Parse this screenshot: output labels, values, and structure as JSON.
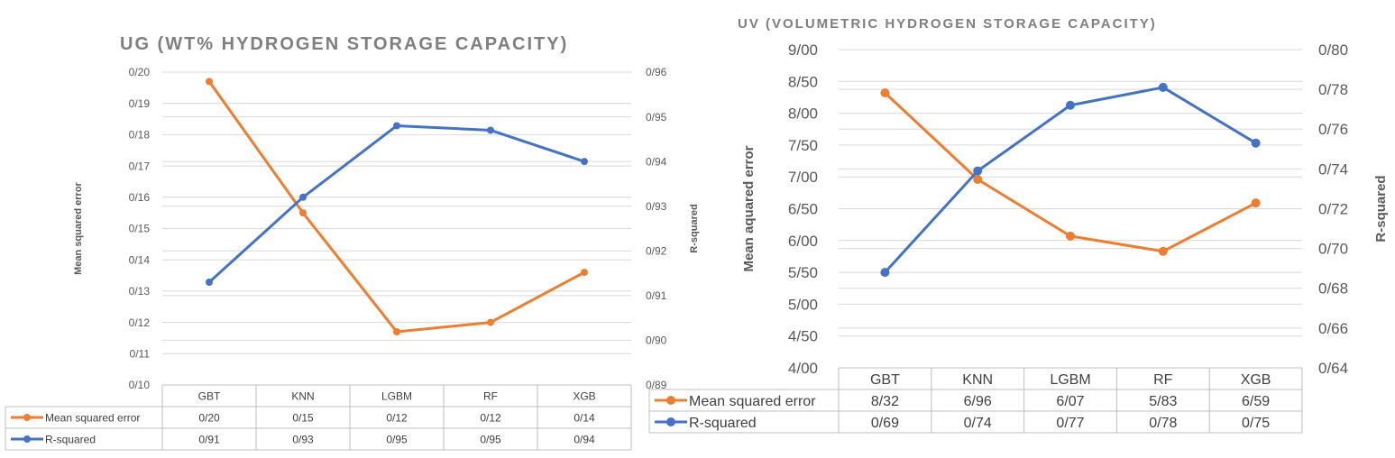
{
  "colors": {
    "mse": "#ed7d31",
    "r2": "#4472c4"
  },
  "chart_data": [
    {
      "type": "line",
      "title": "UG (WT% HYDROGEN STORAGE CAPACITY)",
      "categories": [
        "GBT",
        "KNN",
        "LGBM",
        "RF",
        "XGB"
      ],
      "ylabel": "Mean squared error",
      "y2label": "R-squared",
      "ylim": [
        0.1,
        0.2
      ],
      "y2lim": [
        0.89,
        0.96
      ],
      "yticks": [
        "0/10",
        "0/11",
        "0/12",
        "0/13",
        "0/14",
        "0/15",
        "0/16",
        "0/17",
        "0/18",
        "0/19",
        "0/20"
      ],
      "y2ticks": [
        "0/89",
        "0/90",
        "0/91",
        "0/92",
        "0/93",
        "0/94",
        "0/95",
        "0/96"
      ],
      "grid": true,
      "legend": "data-table",
      "series": [
        {
          "name": "Mean squared error",
          "axis": "left",
          "color": "#ed7d31",
          "values": [
            0.197,
            0.155,
            0.117,
            0.12,
            0.136
          ],
          "table_labels": [
            "0/20",
            "0/15",
            "0/12",
            "0/12",
            "0/14"
          ]
        },
        {
          "name": "R-squared",
          "axis": "right",
          "color": "#4472c4",
          "values": [
            0.913,
            0.932,
            0.948,
            0.947,
            0.94
          ],
          "table_labels": [
            "0/91",
            "0/93",
            "0/95",
            "0/95",
            "0/94"
          ]
        }
      ]
    },
    {
      "type": "line",
      "title": "UV (VOLUMETRIC HYDROGEN STORAGE CAPACITY)",
      "categories": [
        "GBT",
        "KNN",
        "LGBM",
        "RF",
        "XGB"
      ],
      "ylabel": "Mean aquared error",
      "y2label": "R-squared",
      "ylim": [
        4.0,
        9.0
      ],
      "y2lim": [
        0.64,
        0.8
      ],
      "yticks": [
        "4/00",
        "4/50",
        "5/00",
        "5/50",
        "6/00",
        "6/50",
        "7/00",
        "7/50",
        "8/00",
        "8/50",
        "9/00"
      ],
      "y2ticks": [
        "0/64",
        "0/66",
        "0/68",
        "0/70",
        "0/72",
        "0/74",
        "0/76",
        "0/78",
        "0/80"
      ],
      "grid": true,
      "legend": "data-table",
      "series": [
        {
          "name": "Mean squared error",
          "axis": "left",
          "color": "#ed7d31",
          "values": [
            8.32,
            6.96,
            6.07,
            5.83,
            6.59
          ],
          "table_labels": [
            "8/32",
            "6/96",
            "6/07",
            "5/83",
            "6/59"
          ]
        },
        {
          "name": "R-squared",
          "axis": "right",
          "color": "#4472c4",
          "values": [
            0.688,
            0.739,
            0.772,
            0.781,
            0.753
          ],
          "table_labels": [
            "0/69",
            "0/74",
            "0/77",
            "0/78",
            "0/75"
          ]
        }
      ]
    }
  ]
}
